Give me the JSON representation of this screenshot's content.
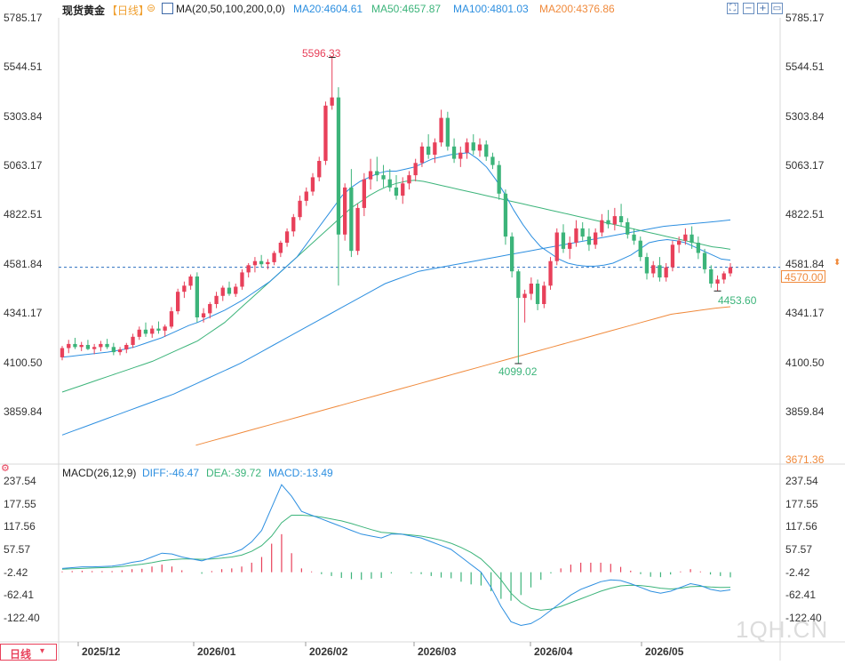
{
  "chart_title": "现货黄金",
  "period_label": "【日线】",
  "ma_header": {
    "label": "MA(20,50,100,200,0,0)",
    "ma20": "MA20:4604.61",
    "ma50": "MA50:4657.87",
    "ma100": "MA100:4801.03",
    "ma200": "MA200:4376.86"
  },
  "macd_header": {
    "label": "MACD(26,12,9)",
    "diff": "DIFF:-46.47",
    "dea": "DEA:-39.72",
    "macd": "MACD:-13.49"
  },
  "colors": {
    "up": "#e8405a",
    "down": "#3cb47a",
    "ma20": "#2d8fe0",
    "ma50": "#3cb47a",
    "ma100": "#2d8fe0",
    "ma200": "#f08a3c",
    "header_title": "#222222",
    "period": "#f0a030",
    "watermark": "#dddddd"
  },
  "price_axis_labels": [
    "5785.17",
    "5544.51",
    "5303.84",
    "5063.17",
    "4822.51",
    "4581.84",
    "4341.17",
    "4100.50",
    "3859.84"
  ],
  "price_axis_extra_right": "3671.36",
  "current_price_tag": "4570.00",
  "macd_axis_labels": [
    "237.54",
    "177.55",
    "117.56",
    "57.57",
    "-2.42",
    "-62.41",
    "-122.40"
  ],
  "x_axis_labels": [
    "2025/12",
    "2026/01",
    "2026/02",
    "2026/03",
    "2026/04",
    "2026/05"
  ],
  "bottom_left_label": "日线",
  "watermark": "1QH.CN",
  "annotations": {
    "high": "5596.33",
    "low": "4099.02",
    "recent_low": "4453.60"
  },
  "chart_data": {
    "type": "candlestick",
    "title": "现货黄金",
    "ylim": [
      3671.36,
      5785.17
    ],
    "current_price": 4570.0,
    "candles": [
      {
        "o": 4130,
        "h": 4185,
        "l": 4115,
        "c": 4175
      },
      {
        "o": 4175,
        "h": 4215,
        "l": 4150,
        "c": 4195
      },
      {
        "o": 4195,
        "h": 4225,
        "l": 4170,
        "c": 4180
      },
      {
        "o": 4180,
        "h": 4205,
        "l": 4160,
        "c": 4190
      },
      {
        "o": 4190,
        "h": 4215,
        "l": 4165,
        "c": 4170
      },
      {
        "o": 4170,
        "h": 4195,
        "l": 4145,
        "c": 4180
      },
      {
        "o": 4180,
        "h": 4210,
        "l": 4160,
        "c": 4195
      },
      {
        "o": 4195,
        "h": 4220,
        "l": 4170,
        "c": 4180
      },
      {
        "o": 4180,
        "h": 4200,
        "l": 4140,
        "c": 4155
      },
      {
        "o": 4155,
        "h": 4180,
        "l": 4140,
        "c": 4168
      },
      {
        "o": 4168,
        "h": 4200,
        "l": 4150,
        "c": 4190
      },
      {
        "o": 4190,
        "h": 4245,
        "l": 4175,
        "c": 4230
      },
      {
        "o": 4230,
        "h": 4280,
        "l": 4215,
        "c": 4265
      },
      {
        "o": 4265,
        "h": 4300,
        "l": 4230,
        "c": 4245
      },
      {
        "o": 4245,
        "h": 4285,
        "l": 4225,
        "c": 4270
      },
      {
        "o": 4270,
        "h": 4305,
        "l": 4245,
        "c": 4260
      },
      {
        "o": 4260,
        "h": 4290,
        "l": 4230,
        "c": 4280
      },
      {
        "o": 4280,
        "h": 4375,
        "l": 4270,
        "c": 4355
      },
      {
        "o": 4355,
        "h": 4465,
        "l": 4340,
        "c": 4450
      },
      {
        "o": 4450,
        "h": 4500,
        "l": 4420,
        "c": 4480
      },
      {
        "o": 4480,
        "h": 4535,
        "l": 4460,
        "c": 4525
      },
      {
        "o": 4525,
        "h": 4545,
        "l": 4300,
        "c": 4325
      },
      {
        "o": 4325,
        "h": 4370,
        "l": 4300,
        "c": 4345
      },
      {
        "o": 4345,
        "h": 4400,
        "l": 4320,
        "c": 4390
      },
      {
        "o": 4390,
        "h": 4450,
        "l": 4370,
        "c": 4430
      },
      {
        "o": 4430,
        "h": 4480,
        "l": 4405,
        "c": 4470
      },
      {
        "o": 4470,
        "h": 4500,
        "l": 4430,
        "c": 4440
      },
      {
        "o": 4440,
        "h": 4490,
        "l": 4425,
        "c": 4475
      },
      {
        "o": 4475,
        "h": 4560,
        "l": 4460,
        "c": 4545
      },
      {
        "o": 4545,
        "h": 4590,
        "l": 4520,
        "c": 4580
      },
      {
        "o": 4580,
        "h": 4620,
        "l": 4545,
        "c": 4600
      },
      {
        "o": 4600,
        "h": 4630,
        "l": 4570,
        "c": 4585
      },
      {
        "o": 4585,
        "h": 4610,
        "l": 4560,
        "c": 4595
      },
      {
        "o": 4595,
        "h": 4650,
        "l": 4580,
        "c": 4640
      },
      {
        "o": 4640,
        "h": 4700,
        "l": 4620,
        "c": 4690
      },
      {
        "o": 4690,
        "h": 4760,
        "l": 4670,
        "c": 4745
      },
      {
        "o": 4745,
        "h": 4830,
        "l": 4720,
        "c": 4815
      },
      {
        "o": 4815,
        "h": 4920,
        "l": 4800,
        "c": 4895
      },
      {
        "o": 4895,
        "h": 4960,
        "l": 4870,
        "c": 4940
      },
      {
        "o": 4940,
        "h": 5030,
        "l": 4920,
        "c": 5010
      },
      {
        "o": 5010,
        "h": 5110,
        "l": 4990,
        "c": 5090
      },
      {
        "o": 5090,
        "h": 5380,
        "l": 5070,
        "c": 5360
      },
      {
        "o": 5360,
        "h": 5596,
        "l": 5340,
        "c": 5400
      },
      {
        "o": 5400,
        "h": 5450,
        "l": 4480,
        "c": 4730
      },
      {
        "o": 4730,
        "h": 4980,
        "l": 4700,
        "c": 4960
      },
      {
        "o": 4960,
        "h": 5050,
        "l": 4620,
        "c": 4650
      },
      {
        "o": 4650,
        "h": 4880,
        "l": 4630,
        "c": 4860
      },
      {
        "o": 4860,
        "h": 5030,
        "l": 4820,
        "c": 5000
      },
      {
        "o": 5000,
        "h": 5100,
        "l": 4950,
        "c": 5040
      },
      {
        "o": 5040,
        "h": 5110,
        "l": 4990,
        "c": 5020
      },
      {
        "o": 5020,
        "h": 5070,
        "l": 4960,
        "c": 5000
      },
      {
        "o": 5000,
        "h": 5050,
        "l": 4940,
        "c": 4960
      },
      {
        "o": 4960,
        "h": 5020,
        "l": 4900,
        "c": 4920
      },
      {
        "o": 4920,
        "h": 5010,
        "l": 4880,
        "c": 4980
      },
      {
        "o": 4980,
        "h": 5040,
        "l": 4950,
        "c": 5020
      },
      {
        "o": 5020,
        "h": 5100,
        "l": 4990,
        "c": 5080
      },
      {
        "o": 5080,
        "h": 5180,
        "l": 5060,
        "c": 5160
      },
      {
        "o": 5160,
        "h": 5220,
        "l": 5100,
        "c": 5120
      },
      {
        "o": 5120,
        "h": 5200,
        "l": 5080,
        "c": 5180
      },
      {
        "o": 5180,
        "h": 5340,
        "l": 5160,
        "c": 5300
      },
      {
        "o": 5300,
        "h": 5330,
        "l": 5140,
        "c": 5160
      },
      {
        "o": 5160,
        "h": 5200,
        "l": 5080,
        "c": 5100
      },
      {
        "o": 5100,
        "h": 5160,
        "l": 5060,
        "c": 5130
      },
      {
        "o": 5130,
        "h": 5200,
        "l": 5100,
        "c": 5180
      },
      {
        "o": 5180,
        "h": 5220,
        "l": 5120,
        "c": 5140
      },
      {
        "o": 5140,
        "h": 5200,
        "l": 5110,
        "c": 5170
      },
      {
        "o": 5170,
        "h": 5190,
        "l": 5090,
        "c": 5110
      },
      {
        "o": 5110,
        "h": 5130,
        "l": 5050,
        "c": 5070
      },
      {
        "o": 5070,
        "h": 5090,
        "l": 4900,
        "c": 4930
      },
      {
        "o": 4930,
        "h": 4950,
        "l": 4680,
        "c": 4720
      },
      {
        "o": 4720,
        "h": 4740,
        "l": 4520,
        "c": 4550
      },
      {
        "o": 4550,
        "h": 4560,
        "l": 4099,
        "c": 4420
      },
      {
        "o": 4420,
        "h": 4460,
        "l": 4300,
        "c": 4440
      },
      {
        "o": 4440,
        "h": 4520,
        "l": 4410,
        "c": 4490
      },
      {
        "o": 4490,
        "h": 4510,
        "l": 4360,
        "c": 4390
      },
      {
        "o": 4390,
        "h": 4500,
        "l": 4370,
        "c": 4480
      },
      {
        "o": 4480,
        "h": 4620,
        "l": 4460,
        "c": 4600
      },
      {
        "o": 4600,
        "h": 4760,
        "l": 4580,
        "c": 4740
      },
      {
        "o": 4740,
        "h": 4780,
        "l": 4640,
        "c": 4660
      },
      {
        "o": 4660,
        "h": 4720,
        "l": 4610,
        "c": 4690
      },
      {
        "o": 4690,
        "h": 4800,
        "l": 4670,
        "c": 4760
      },
      {
        "o": 4760,
        "h": 4790,
        "l": 4700,
        "c": 4720
      },
      {
        "o": 4720,
        "h": 4760,
        "l": 4650,
        "c": 4680
      },
      {
        "o": 4680,
        "h": 4760,
        "l": 4660,
        "c": 4740
      },
      {
        "o": 4740,
        "h": 4830,
        "l": 4720,
        "c": 4800
      },
      {
        "o": 4800,
        "h": 4850,
        "l": 4760,
        "c": 4780
      },
      {
        "o": 4780,
        "h": 4860,
        "l": 4750,
        "c": 4820
      },
      {
        "o": 4820,
        "h": 4880,
        "l": 4770,
        "c": 4790
      },
      {
        "o": 4790,
        "h": 4810,
        "l": 4710,
        "c": 4730
      },
      {
        "o": 4730,
        "h": 4760,
        "l": 4680,
        "c": 4700
      },
      {
        "o": 4700,
        "h": 4720,
        "l": 4600,
        "c": 4620
      },
      {
        "o": 4620,
        "h": 4640,
        "l": 4510,
        "c": 4540
      },
      {
        "o": 4540,
        "h": 4600,
        "l": 4520,
        "c": 4580
      },
      {
        "o": 4580,
        "h": 4620,
        "l": 4500,
        "c": 4520
      },
      {
        "o": 4520,
        "h": 4590,
        "l": 4500,
        "c": 4570
      },
      {
        "o": 4570,
        "h": 4700,
        "l": 4550,
        "c": 4680
      },
      {
        "o": 4680,
        "h": 4720,
        "l": 4640,
        "c": 4700
      },
      {
        "o": 4700,
        "h": 4760,
        "l": 4680,
        "c": 4730
      },
      {
        "o": 4730,
        "h": 4770,
        "l": 4660,
        "c": 4690
      },
      {
        "o": 4690,
        "h": 4720,
        "l": 4610,
        "c": 4640
      },
      {
        "o": 4640,
        "h": 4660,
        "l": 4540,
        "c": 4560
      },
      {
        "o": 4560,
        "h": 4580,
        "l": 4470,
        "c": 4490
      },
      {
        "o": 4490,
        "h": 4530,
        "l": 4454,
        "c": 4510
      },
      {
        "o": 4510,
        "h": 4550,
        "l": 4490,
        "c": 4540
      },
      {
        "o": 4540,
        "h": 4590,
        "l": 4525,
        "c": 4570
      }
    ],
    "ma20": [
      4130,
      4135,
      4140,
      4145,
      4150,
      4155,
      4162,
      4170,
      4180,
      4195,
      4210,
      4225,
      4245,
      4265,
      4285,
      4300,
      4320,
      4340,
      4360,
      4385,
      4410,
      4440,
      4470,
      4500,
      4540,
      4580,
      4620,
      4680,
      4740,
      4800,
      4860,
      4920,
      4960,
      4990,
      5010,
      5030,
      5040,
      5040,
      5050,
      5060,
      5080,
      5100,
      5110,
      5120,
      5125,
      5130,
      5100,
      5060,
      5000,
      4930,
      4850,
      4780,
      4720,
      4670,
      4640,
      4610,
      4590,
      4580,
      4575,
      4575,
      4580,
      4590,
      4610,
      4630,
      4660,
      4690,
      4700,
      4705,
      4700,
      4690,
      4670,
      4650,
      4630,
      4610,
      4604.61
    ],
    "ma50": [
      3960,
      3975,
      3990,
      4005,
      4020,
      4035,
      4050,
      4065,
      4080,
      4095,
      4110,
      4130,
      4150,
      4170,
      4190,
      4210,
      4240,
      4270,
      4300,
      4340,
      4380,
      4420,
      4460,
      4500,
      4540,
      4580,
      4620,
      4660,
      4700,
      4740,
      4780,
      4820,
      4860,
      4890,
      4920,
      4945,
      4965,
      4980,
      4990,
      4995,
      4990,
      4980,
      4970,
      4960,
      4950,
      4940,
      4930,
      4920,
      4910,
      4900,
      4890,
      4880,
      4870,
      4860,
      4850,
      4840,
      4830,
      4820,
      4810,
      4800,
      4790,
      4780,
      4770,
      4760,
      4750,
      4740,
      4730,
      4720,
      4710,
      4700,
      4690,
      4680,
      4670,
      4665,
      4657.87
    ],
    "ma100": [
      3750,
      3770,
      3790,
      3810,
      3830,
      3850,
      3870,
      3890,
      3910,
      3930,
      3950,
      3975,
      4000,
      4025,
      4050,
      4075,
      4100,
      4130,
      4160,
      4190,
      4220,
      4250,
      4280,
      4310,
      4340,
      4370,
      4400,
      4430,
      4460,
      4490,
      4510,
      4530,
      4550,
      4560,
      4570,
      4580,
      4590,
      4600,
      4610,
      4620,
      4630,
      4640,
      4650,
      4660,
      4670,
      4680,
      4690,
      4700,
      4710,
      4720,
      4730,
      4740,
      4750,
      4760,
      4770,
      4775,
      4780,
      4785,
      4790,
      4795,
      4801.03
    ],
    "ma200": [
      3700,
      3720,
      3740,
      3760,
      3780,
      3800,
      3820,
      3840,
      3860,
      3880,
      3900,
      3920,
      3940,
      3960,
      3980,
      4000,
      4020,
      4040,
      4060,
      4080,
      4100,
      4120,
      4140,
      4160,
      4180,
      4200,
      4220,
      4240,
      4260,
      4280,
      4300,
      4320,
      4340,
      4350,
      4360,
      4370,
      4376.86
    ],
    "macd_ylim": [
      -152.4,
      267.54
    ],
    "macd_diff": [
      10,
      12,
      14,
      14,
      15,
      16,
      20,
      26,
      30,
      40,
      50,
      48,
      40,
      35,
      30,
      38,
      45,
      50,
      60,
      80,
      110,
      170,
      230,
      200,
      160,
      150,
      140,
      130,
      120,
      110,
      100,
      95,
      90,
      100,
      100,
      95,
      90,
      80,
      70,
      60,
      40,
      20,
      0,
      -40,
      -90,
      -130,
      -140,
      -135,
      -120,
      -100,
      -80,
      -60,
      -45,
      -35,
      -25,
      -20,
      -22,
      -30,
      -40,
      -50,
      -55,
      -50,
      -40,
      -30,
      -35,
      -45,
      -50,
      -46.47
    ],
    "macd_dea": [
      8,
      9,
      10,
      11,
      12,
      13,
      15,
      18,
      21,
      25,
      30,
      33,
      35,
      35,
      34,
      35,
      37,
      40,
      45,
      55,
      70,
      95,
      130,
      150,
      150,
      148,
      145,
      140,
      135,
      128,
      120,
      112,
      105,
      103,
      100,
      98,
      95,
      90,
      84,
      76,
      65,
      52,
      35,
      10,
      -20,
      -55,
      -80,
      -95,
      -100,
      -97,
      -90,
      -80,
      -70,
      -60,
      -50,
      -42,
      -36,
      -34,
      -35,
      -38,
      -42,
      -44,
      -42,
      -38,
      -37,
      -39,
      -40,
      -39.72
    ],
    "macd_hist": [
      2,
      3,
      4,
      3,
      3,
      3,
      5,
      8,
      9,
      15,
      20,
      15,
      5,
      0,
      -4,
      3,
      8,
      10,
      15,
      25,
      40,
      75,
      100,
      50,
      10,
      2,
      -5,
      -10,
      -15,
      -18,
      -20,
      -17,
      -15,
      -3,
      0,
      -3,
      -5,
      -10,
      -14,
      -16,
      -25,
      -32,
      -35,
      -50,
      -70,
      -75,
      -60,
      -40,
      -20,
      -3,
      10,
      20,
      25,
      25,
      25,
      22,
      14,
      4,
      -5,
      -12,
      -13,
      -6,
      2,
      8,
      2,
      -6,
      -10,
      -13.49
    ]
  }
}
